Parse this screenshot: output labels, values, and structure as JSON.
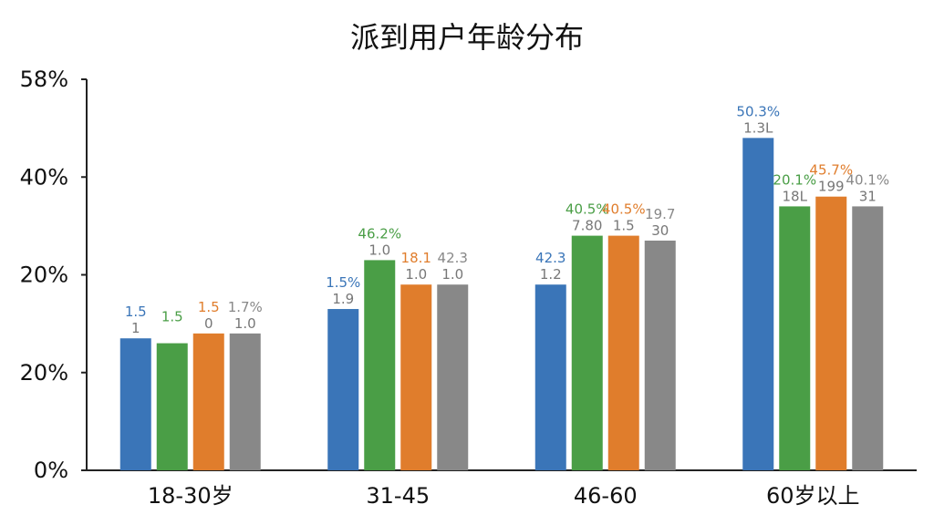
{
  "chart_data": {
    "type": "bar",
    "title": "派到用户年龄分布",
    "xlabel": "",
    "ylabel": "",
    "categories": [
      "18-30岁",
      "31-45",
      "46-60",
      "60岁以上"
    ],
    "y_tick_labels": [
      "58%",
      "40%",
      "20%",
      "20%",
      "0%"
    ],
    "ylim": [
      0,
      80
    ],
    "grid": false,
    "legend": "none",
    "series": [
      {
        "color": "#3a75b8",
        "values": [
          27,
          33,
          38,
          68
        ],
        "top_labels": [
          "1.5",
          "1.5%",
          "42.3",
          "50.3%"
        ],
        "sub_labels": [
          "1",
          "1.9",
          "1.2",
          "1.3L"
        ]
      },
      {
        "color": "#4a9e46",
        "values": [
          26,
          43,
          48,
          54
        ],
        "top_labels": [
          "1.5",
          "46.2%",
          "40.5%",
          "20.1%"
        ],
        "sub_labels": [
          "",
          "1.0",
          "7.80",
          "18L"
        ]
      },
      {
        "color": "#e07d2c",
        "values": [
          28,
          38,
          48,
          56
        ],
        "top_labels": [
          "1.5",
          "18.1",
          "40.5%",
          "45.7%"
        ],
        "sub_labels": [
          "0",
          "1.0",
          "1.5",
          "199"
        ]
      },
      {
        "color": "#888888",
        "values": [
          28,
          38,
          47,
          54
        ],
        "top_labels": [
          "1.7%",
          "42.3",
          "19.7",
          "40.1%"
        ],
        "sub_labels": [
          "1.0",
          "1.0",
          "30",
          "31"
        ]
      }
    ]
  }
}
